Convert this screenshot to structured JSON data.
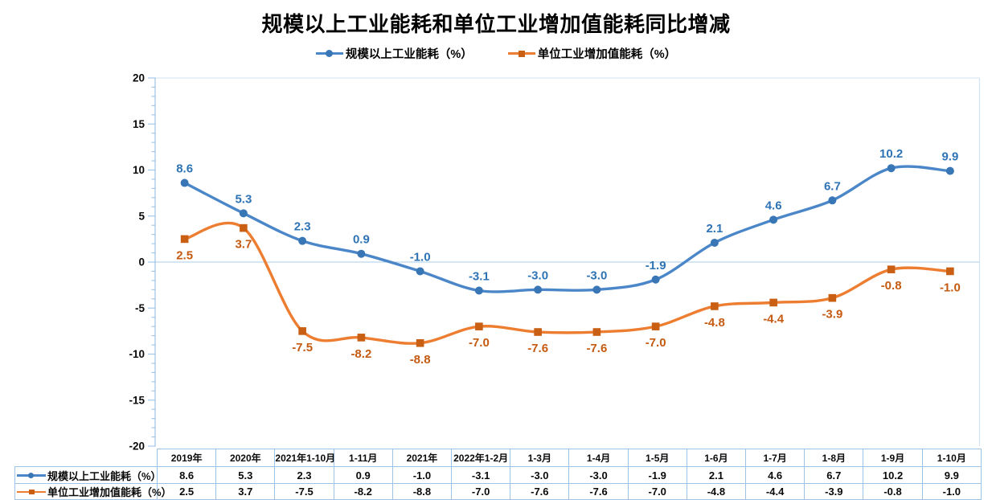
{
  "title": "规模以上工业能耗和单位工业增加值能耗同比增减",
  "legend": {
    "items": [
      {
        "label": "规模以上工业能耗（%）",
        "marker": "circle-on-line"
      },
      {
        "label": "单位工业增加值能耗（%）",
        "marker": "square-on-line"
      }
    ]
  },
  "colors": {
    "series1_line": "#4A86C8",
    "series1_marker": "#3876B6",
    "series1_label_text": "#2E74B5",
    "series2_line": "#ED7D31",
    "series2_marker": "#C95F13",
    "series2_label_text": "#C55A11",
    "axis_line": "#9DC3E6",
    "zero_gridline": "#A9CBE8",
    "plot_border": "#D3E3F2",
    "table_border": "#9DC3E6",
    "axis_label_text": "#0a0a0a",
    "title_text": "#000000"
  },
  "chart_data": {
    "type": "line",
    "title": "规模以上工业能耗和单位工业增加值能耗同比增减",
    "categories": [
      "2019年",
      "2020年",
      "2021年1-10月",
      "1-11月",
      "2021年",
      "2022年1-2月",
      "1-3月",
      "1-4月",
      "1-5月",
      "1-6月",
      "1-7月",
      "1-8月",
      "1-9月",
      "1-10月"
    ],
    "series": [
      {
        "name": "规模以上工业能耗（%）",
        "values": [
          8.6,
          5.3,
          2.3,
          0.9,
          -1.0,
          -3.1,
          -3.0,
          -3.0,
          -1.9,
          2.1,
          4.6,
          6.7,
          10.2,
          9.9
        ],
        "color": "#4A86C8",
        "marker": "circle",
        "marker_color": "#3876B6",
        "label_color": "#2E74B5",
        "label_position": "above"
      },
      {
        "name": "单位工业增加值能耗（%）",
        "values": [
          2.5,
          3.7,
          -7.5,
          -8.2,
          -8.8,
          -7.0,
          -7.6,
          -7.6,
          -7.0,
          -4.8,
          -4.4,
          -3.9,
          -0.8,
          -1.0
        ],
        "color": "#ED7D31",
        "marker": "square",
        "marker_color": "#C95F13",
        "label_color": "#C55A11",
        "label_position": "below"
      }
    ],
    "ylim": [
      -20,
      20
    ],
    "y_ticks": [
      20,
      15,
      10,
      5,
      0,
      -5,
      -10,
      -15,
      -20
    ],
    "y_minor_step": 1,
    "grid": "zero-line-only",
    "legend_position": "top-center",
    "data_table_shown": true,
    "smooth_lines": true
  }
}
